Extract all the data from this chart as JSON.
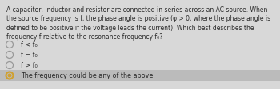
{
  "background_color": "#d8d8d8",
  "question_color": "#c8c8c8",
  "question_lines": [
    "A capacitor, inductor and resistor are connected in series across an AC source. When",
    "the source frequency is f, the phase angle is positive (φ > 0, where the phase angle is",
    "defined to be positive if the voltage leads the current). Which best describes the",
    "frequency f relative to the resonance frequency f₀?"
  ],
  "options": [
    {
      "text": "f < f₀",
      "selected": false
    },
    {
      "text": "f = f₀",
      "selected": false
    },
    {
      "text": "f > f₀",
      "selected": false
    },
    {
      "text": "The frequency could be any of the above.",
      "selected": true
    }
  ],
  "text_color": "#2a2a2a",
  "question_fontsize": 5.5,
  "option_fontsize": 5.8,
  "selected_row_color": "#bbbbbb",
  "circle_edge_color": "#999999",
  "selected_circle_color": "#d0a030",
  "unselected_bg": "#d8d8d8"
}
